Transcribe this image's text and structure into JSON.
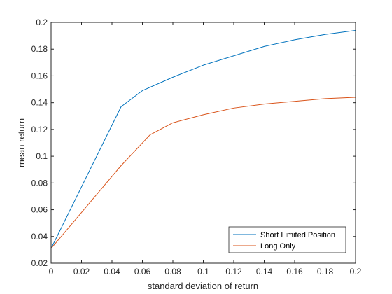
{
  "chart_data": {
    "type": "line",
    "xlabel": "standard deviation of return",
    "ylabel": "mean return",
    "xlim": [
      0,
      0.2
    ],
    "ylim": [
      0.02,
      0.2
    ],
    "xticks": [
      "0",
      "0.02",
      "0.04",
      "0.06",
      "0.08",
      "0.1",
      "0.12",
      "0.14",
      "0.16",
      "0.18",
      "0.2"
    ],
    "yticks": [
      "0.02",
      "0.04",
      "0.06",
      "0.08",
      "0.1",
      "0.12",
      "0.14",
      "0.16",
      "0.18",
      "0.2"
    ],
    "grid": false,
    "legend_position": "bottom-right",
    "series": [
      {
        "name": "Short Limited Position",
        "color": "#0072BD",
        "x": [
          0,
          0.046,
          0.06,
          0.08,
          0.1,
          0.12,
          0.14,
          0.16,
          0.18,
          0.2
        ],
        "y": [
          0.031,
          0.137,
          0.149,
          0.159,
          0.168,
          0.175,
          0.182,
          0.187,
          0.191,
          0.194
        ]
      },
      {
        "name": "Long Only",
        "color": "#D95319",
        "x": [
          0,
          0.046,
          0.065,
          0.08,
          0.1,
          0.12,
          0.14,
          0.16,
          0.18,
          0.2
        ],
        "y": [
          0.031,
          0.093,
          0.116,
          0.125,
          0.131,
          0.136,
          0.139,
          0.141,
          0.143,
          0.144
        ]
      }
    ]
  }
}
